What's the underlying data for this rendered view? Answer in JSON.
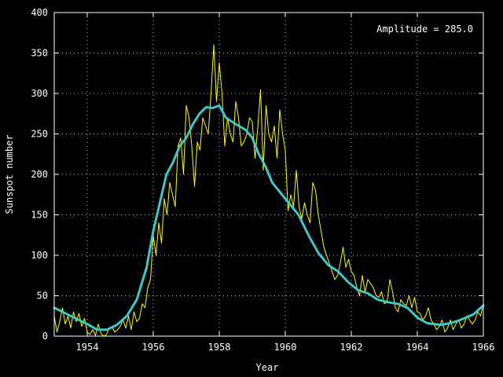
{
  "chart_data": {
    "type": "line",
    "xlabel": "Year",
    "ylabel": "Sunspot number",
    "annotation": "Amplitude = 285.0",
    "xlim": [
      1953,
      1966
    ],
    "ylim": [
      0,
      400
    ],
    "x_ticks": [
      1954,
      1956,
      1958,
      1960,
      1962,
      1964,
      1966
    ],
    "y_ticks": [
      0,
      50,
      100,
      150,
      200,
      250,
      300,
      350,
      400
    ],
    "grid": true,
    "colors": {
      "background": "#000000",
      "frame": "#ffffff",
      "grid": "#c0c0c0",
      "monthly": "#ffff00",
      "smoothed": "#40c8c8"
    },
    "series": [
      {
        "style": "thin",
        "x_start": 1953.0,
        "x_step": 0.0833333,
        "values": [
          25,
          5,
          18,
          35,
          15,
          25,
          10,
          30,
          18,
          28,
          12,
          22,
          5,
          2,
          8,
          1,
          15,
          3,
          0,
          2,
          10,
          12,
          5,
          8,
          12,
          20,
          10,
          25,
          8,
          30,
          18,
          22,
          40,
          35,
          60,
          70,
          125,
          100,
          140,
          115,
          170,
          150,
          190,
          175,
          160,
          235,
          245,
          200,
          285,
          270,
          235,
          185,
          240,
          230,
          270,
          260,
          250,
          300,
          360,
          290,
          338,
          300,
          235,
          270,
          250,
          240,
          290,
          270,
          235,
          240,
          250,
          270,
          265,
          220,
          258,
          305,
          205,
          285,
          250,
          240,
          260,
          220,
          280,
          250,
          230,
          155,
          175,
          160,
          205,
          160,
          145,
          165,
          150,
          140,
          190,
          180,
          150,
          130,
          110,
          100,
          90,
          80,
          70,
          75,
          90,
          110,
          85,
          95,
          80,
          75,
          60,
          50,
          75,
          55,
          70,
          65,
          60,
          50,
          48,
          55,
          40,
          42,
          70,
          55,
          35,
          30,
          45,
          40,
          38,
          50,
          35,
          48,
          30,
          28,
          20,
          25,
          35,
          20,
          15,
          8,
          12,
          20,
          5,
          10,
          20,
          8,
          15,
          20,
          10,
          15,
          25,
          20,
          15,
          20,
          30,
          25,
          40
        ]
      },
      {
        "style": "thick",
        "points": [
          [
            1953.0,
            35
          ],
          [
            1953.5,
            25
          ],
          [
            1954.0,
            15
          ],
          [
            1954.3,
            8
          ],
          [
            1954.6,
            8
          ],
          [
            1954.9,
            14
          ],
          [
            1955.2,
            25
          ],
          [
            1955.5,
            45
          ],
          [
            1955.8,
            85
          ],
          [
            1956.0,
            130
          ],
          [
            1956.2,
            165
          ],
          [
            1956.4,
            200
          ],
          [
            1956.6,
            215
          ],
          [
            1956.8,
            235
          ],
          [
            1957.0,
            245
          ],
          [
            1957.2,
            262
          ],
          [
            1957.4,
            275
          ],
          [
            1957.6,
            283
          ],
          [
            1957.8,
            282
          ],
          [
            1958.0,
            285
          ],
          [
            1958.2,
            270
          ],
          [
            1958.5,
            262
          ],
          [
            1958.8,
            255
          ],
          [
            1959.0,
            245
          ],
          [
            1959.2,
            225
          ],
          [
            1959.4,
            210
          ],
          [
            1959.6,
            190
          ],
          [
            1959.9,
            175
          ],
          [
            1960.1,
            165
          ],
          [
            1960.4,
            150
          ],
          [
            1960.7,
            125
          ],
          [
            1961.0,
            103
          ],
          [
            1961.3,
            88
          ],
          [
            1961.6,
            80
          ],
          [
            1961.9,
            67
          ],
          [
            1962.2,
            57
          ],
          [
            1962.5,
            53
          ],
          [
            1962.8,
            45
          ],
          [
            1963.1,
            42
          ],
          [
            1963.4,
            40
          ],
          [
            1963.7,
            35
          ],
          [
            1964.0,
            23
          ],
          [
            1964.3,
            16
          ],
          [
            1964.7,
            14
          ],
          [
            1965.0,
            16
          ],
          [
            1965.3,
            20
          ],
          [
            1965.7,
            27
          ],
          [
            1966.0,
            38
          ]
        ]
      }
    ]
  }
}
